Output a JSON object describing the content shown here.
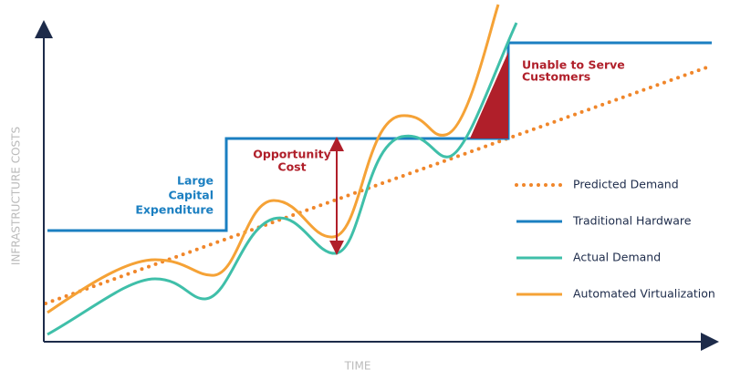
{
  "axes": {
    "y_label": "INFRASTRUCTURE COSTS",
    "x_label": "TIME"
  },
  "annotations": {
    "capital": [
      "Large",
      "Capital",
      "Expenditure"
    ],
    "opportunity": [
      "Opportunity",
      "Cost"
    ],
    "unable": [
      "Unable to Serve",
      "Customers"
    ]
  },
  "legend": [
    {
      "label": "Predicted Demand",
      "color": "#f0862a",
      "style": "dotted"
    },
    {
      "label": "Traditional Hardware",
      "color": "#1b7fc1",
      "style": "solid"
    },
    {
      "label": "Actual Demand",
      "color": "#3fbfa9",
      "style": "solid"
    },
    {
      "label": "Automated Virtualization",
      "color": "#f5a236",
      "style": "solid"
    }
  ]
}
